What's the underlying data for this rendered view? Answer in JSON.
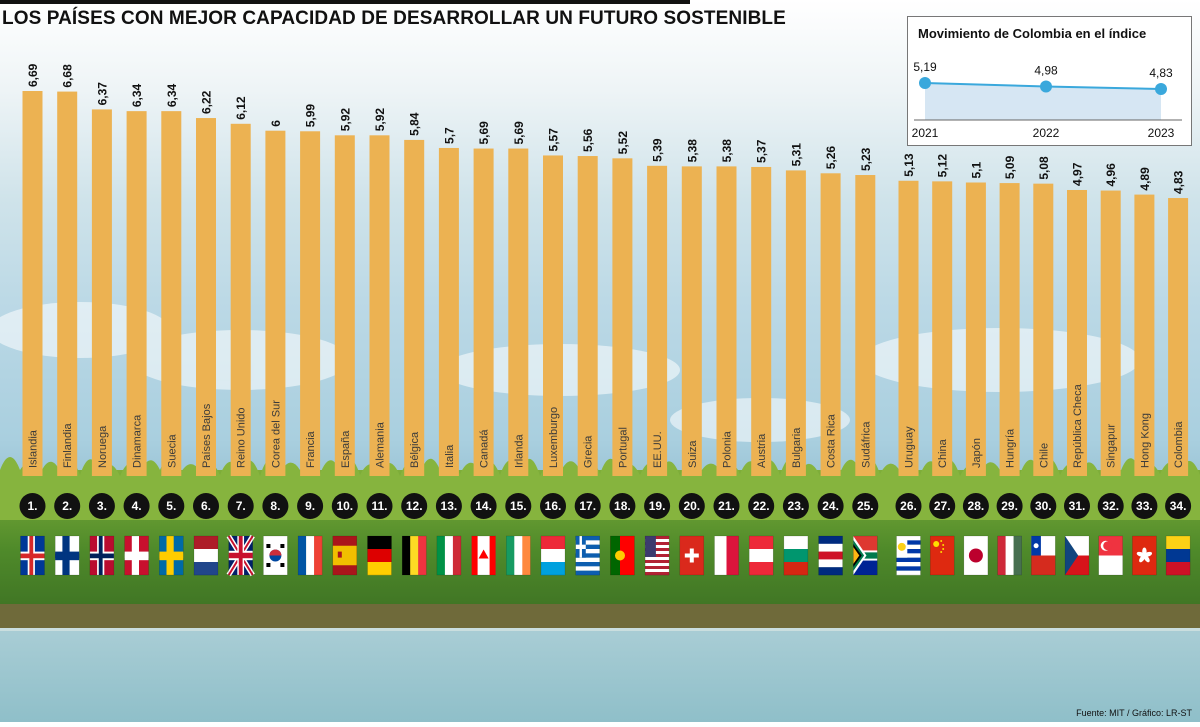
{
  "title": "LOS PAÍSES CON MEJOR CAPACIDAD DE DESARROLLAR UN FUTURO SOSTENIBLE",
  "source": "Fuente: MIT / Gráfico: LR-ST",
  "colors": {
    "bar": "#ecb252",
    "text": "#111111",
    "badge": "#111111",
    "inset_line": "#3aa8dc",
    "inset_fill": "#d6e6f3"
  },
  "chart_data": {
    "type": "bar",
    "title": "LOS PAÍSES CON MEJOR CAPACIDAD DE DESARROLLAR UN FUTURO SOSTENIBLE",
    "xlabel": "",
    "ylabel": "",
    "ylim": [
      0,
      6.69
    ],
    "categories": [
      "Islandia",
      "Finlandia",
      "Noruega",
      "Dinamarca",
      "Suecia",
      "Países Bajos",
      "Reino Unido",
      "Corea del Sur",
      "Francia",
      "España",
      "Alemania",
      "Bélgica",
      "Italia",
      "Canadá",
      "Irlanda",
      "Luxemburgo",
      "Grecia",
      "Portugal",
      "EE.UU.",
      "Suiza",
      "Polonia",
      "Austria",
      "Bulgaria",
      "Costa Rica",
      "Sudáfrica",
      "Uruguay",
      "China",
      "Japón",
      "Hungría",
      "Chile",
      "República Checa",
      "Singapur",
      "Hong Kong",
      "Colombia"
    ],
    "values": [
      6.69,
      6.68,
      6.37,
      6.34,
      6.34,
      6.22,
      6.12,
      6.0,
      5.99,
      5.92,
      5.92,
      5.84,
      5.7,
      5.69,
      5.69,
      5.57,
      5.56,
      5.52,
      5.39,
      5.38,
      5.38,
      5.37,
      5.31,
      5.26,
      5.23,
      5.13,
      5.12,
      5.1,
      5.09,
      5.08,
      4.97,
      4.96,
      4.89,
      4.83
    ],
    "value_labels": [
      "6,69",
      "6,68",
      "6,37",
      "6,34",
      "6,34",
      "6,22",
      "6,12",
      "6",
      "5,99",
      "5,92",
      "5,92",
      "5,84",
      "5,7",
      "5,69",
      "5,69",
      "5,57",
      "5,56",
      "5,52",
      "5,39",
      "5,38",
      "5,38",
      "5,37",
      "5,31",
      "5,26",
      "5,23",
      "5,13",
      "5,12",
      "5,1",
      "5,09",
      "5,08",
      "4,97",
      "4,96",
      "4,89",
      "4,83"
    ],
    "ranks": [
      "1.",
      "2.",
      "3.",
      "4.",
      "5.",
      "6.",
      "7.",
      "8.",
      "9.",
      "10.",
      "11.",
      "12.",
      "13.",
      "14.",
      "15.",
      "16.",
      "17.",
      "18.",
      "19.",
      "20.",
      "21.",
      "22.",
      "23.",
      "24.",
      "25.",
      "26.",
      "27.",
      "28.",
      "29.",
      "30.",
      "31.",
      "32.",
      "33.",
      "34."
    ]
  },
  "flags": [
    {
      "type": "nordic",
      "c": [
        "#003897",
        "#ffffff",
        "#d72828"
      ]
    },
    {
      "type": "nordic",
      "c": [
        "#ffffff",
        "#003580",
        "#003580"
      ]
    },
    {
      "type": "nordic",
      "c": [
        "#ba0c2f",
        "#ffffff",
        "#00205b"
      ]
    },
    {
      "type": "nordic",
      "c": [
        "#c8102e",
        "#ffffff",
        "#ffffff"
      ]
    },
    {
      "type": "nordic",
      "c": [
        "#006aa7",
        "#fecc00",
        "#fecc00"
      ]
    },
    {
      "type": "h",
      "c": [
        "#ae1c28",
        "#ffffff",
        "#21468b"
      ]
    },
    {
      "type": "uk",
      "c": [
        "#012169",
        "#ffffff",
        "#c8102e"
      ]
    },
    {
      "type": "korea",
      "c": [
        "#ffffff",
        "#cd2e3a",
        "#0047a0",
        "#000000"
      ]
    },
    {
      "type": "v",
      "c": [
        "#0055a4",
        "#ffffff",
        "#ef4135"
      ]
    },
    {
      "type": "spain",
      "c": [
        "#aa151b",
        "#f1bf00"
      ]
    },
    {
      "type": "h",
      "c": [
        "#000000",
        "#dd0000",
        "#ffce00"
      ]
    },
    {
      "type": "v",
      "c": [
        "#000000",
        "#fdda24",
        "#ef3340"
      ]
    },
    {
      "type": "v",
      "c": [
        "#009246",
        "#ffffff",
        "#ce2b37"
      ]
    },
    {
      "type": "canada",
      "c": [
        "#ff0000",
        "#ffffff"
      ]
    },
    {
      "type": "v",
      "c": [
        "#169b62",
        "#ffffff",
        "#ff883e"
      ]
    },
    {
      "type": "h",
      "c": [
        "#ed2939",
        "#ffffff",
        "#00a1de"
      ]
    },
    {
      "type": "greece",
      "c": [
        "#0d5eaf",
        "#ffffff"
      ]
    },
    {
      "type": "portugal",
      "c": [
        "#006600",
        "#ff0000",
        "#ffcc00"
      ]
    },
    {
      "type": "usa",
      "c": [
        "#b22234",
        "#ffffff",
        "#3c3b6e"
      ]
    },
    {
      "type": "swiss",
      "c": [
        "#da291c",
        "#ffffff"
      ]
    },
    {
      "type": "v",
      "c": [
        "#ffffff",
        "#dc143c"
      ]
    },
    {
      "type": "h",
      "c": [
        "#ed2939",
        "#ffffff",
        "#ed2939"
      ]
    },
    {
      "type": "h",
      "c": [
        "#ffffff",
        "#00966e",
        "#d62612"
      ]
    },
    {
      "type": "h5",
      "c": [
        "#002b7f",
        "#ffffff",
        "#ce1126",
        "#ffffff",
        "#002b7f"
      ]
    },
    {
      "type": "za",
      "c": [
        "#de3831",
        "#002395",
        "#ffffff",
        "#007a4d",
        "#000000",
        "#ffb612"
      ]
    },
    {
      "type": "uruguay",
      "c": [
        "#ffffff",
        "#0038a8",
        "#fcd116"
      ]
    },
    {
      "type": "china",
      "c": [
        "#de2910",
        "#ffde00"
      ]
    },
    {
      "type": "japan",
      "c": [
        "#ffffff",
        "#bc002d"
      ]
    },
    {
      "type": "v",
      "c": [
        "#ce2939",
        "#ffffff",
        "#477050"
      ]
    },
    {
      "type": "chile",
      "c": [
        "#ffffff",
        "#d52b1e",
        "#0039a6"
      ]
    },
    {
      "type": "czech",
      "c": [
        "#ffffff",
        "#d7141a",
        "#11457e"
      ]
    },
    {
      "type": "singapore",
      "c": [
        "#ef3340",
        "#ffffff"
      ]
    },
    {
      "type": "hk",
      "c": [
        "#de2910",
        "#ffffff"
      ]
    },
    {
      "type": "h",
      "c": [
        "#fcd116",
        "#003893",
        "#ce1126"
      ]
    }
  ],
  "inset": {
    "title": "Movimiento de Colombia en el índice",
    "years": [
      "2021",
      "2022",
      "2023"
    ],
    "values": [
      5.19,
      4.98,
      4.83
    ],
    "labels": [
      "5,19",
      "4,98",
      "4,83"
    ]
  }
}
